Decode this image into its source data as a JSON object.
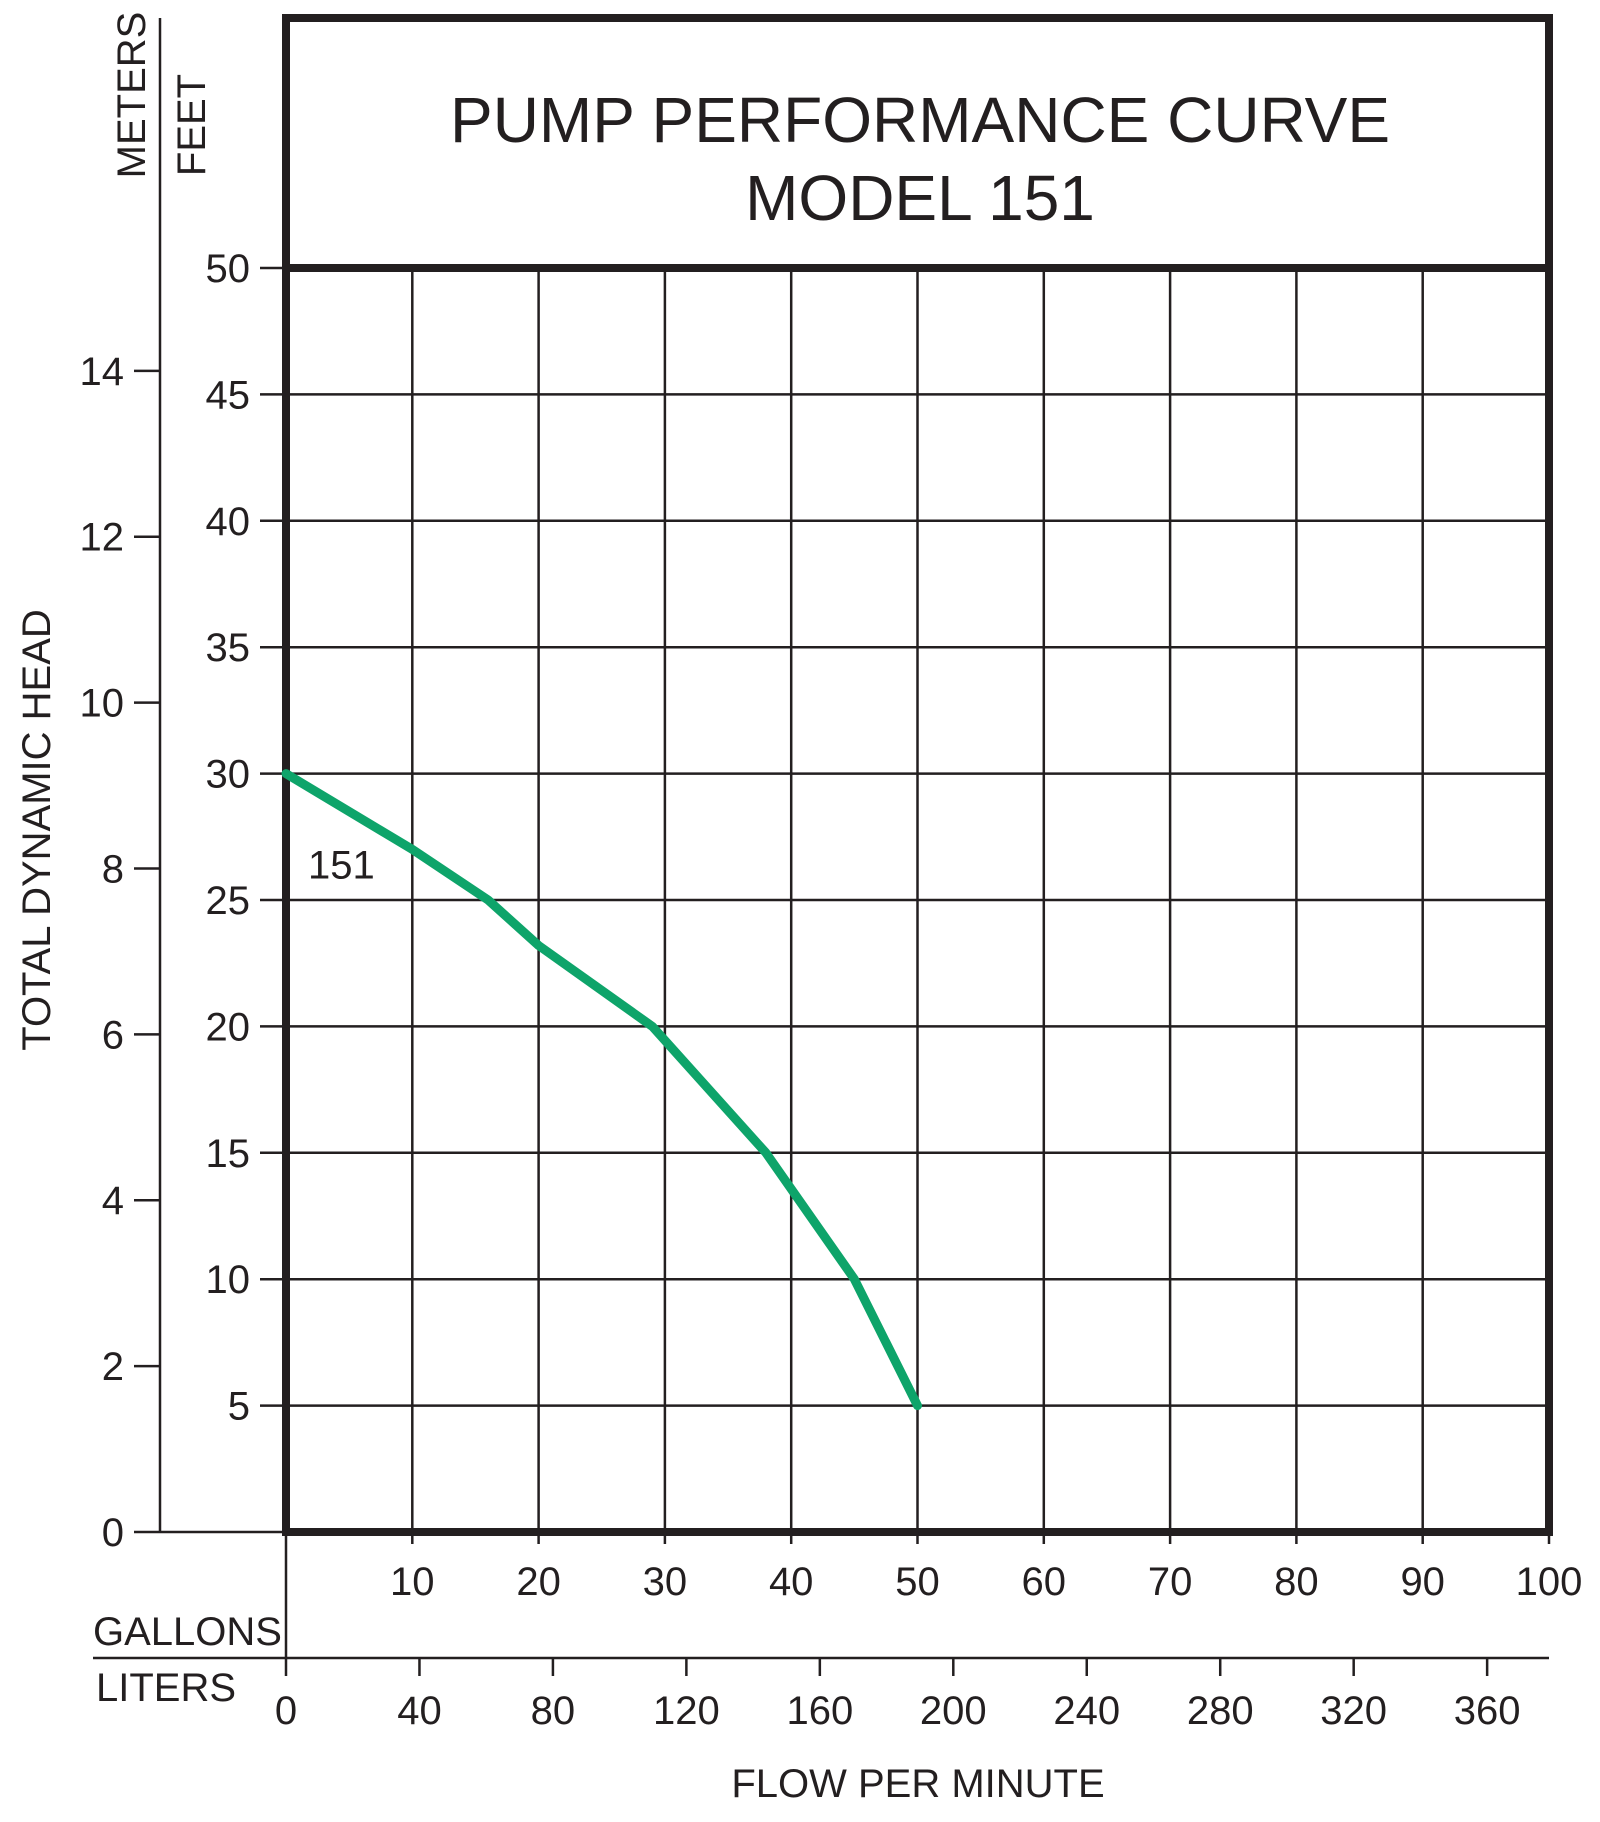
{
  "chart_data": {
    "type": "line",
    "title": "PUMP PERFORMANCE CURVE",
    "subtitle": "MODEL 151",
    "xlabel": "FLOW PER MINUTE",
    "ylabel": "TOTAL DYNAMIC HEAD",
    "primary_y_unit": "FEET",
    "secondary_y_unit": "METERS",
    "primary_x_unit": "GALLONS",
    "secondary_x_unit": "LITERS",
    "xlim": [
      0,
      100
    ],
    "ylim": [
      0,
      50
    ],
    "grid": true,
    "x_ticks": [
      "10",
      "20",
      "30",
      "40",
      "50",
      "60",
      "70",
      "80",
      "90",
      "100"
    ],
    "y_ticks_feet": [
      "5",
      "10",
      "15",
      "20",
      "25",
      "30",
      "35",
      "40",
      "45",
      "50"
    ],
    "y_ticks_meters": [
      "0",
      "2",
      "4",
      "6",
      "8",
      "10",
      "12",
      "14"
    ],
    "x_ticks_liters": [
      "0",
      "40",
      "80",
      "120",
      "160",
      "200",
      "240",
      "280",
      "320",
      "360"
    ],
    "series": [
      {
        "name": "151",
        "color": "#0ea46a",
        "x": [
          0,
          10,
          16,
          20,
          29,
          38,
          45,
          50
        ],
        "y": [
          30,
          27,
          25,
          23.2,
          20,
          15,
          10,
          5
        ]
      }
    ]
  }
}
